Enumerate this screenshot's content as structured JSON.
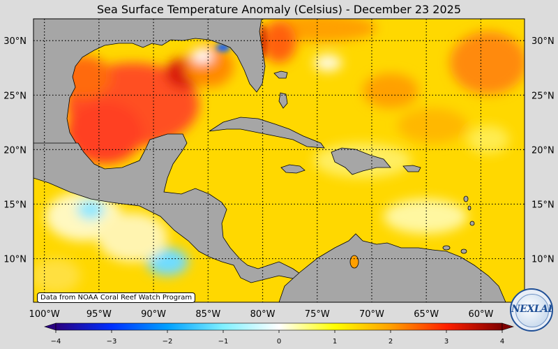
{
  "title": "Sea Surface Temperature Anomaly (Celsius) - December 23 2025",
  "credit": "Data from NOAA Coral Reef Watch Program",
  "logo_text": "NEXLAB",
  "map": {
    "lon_range": [
      -101,
      -56
    ],
    "lat_range": [
      6,
      32
    ],
    "lat_ticks": [
      {
        "value": 30,
        "label": "30°N"
      },
      {
        "value": 25,
        "label": "25°N"
      },
      {
        "value": 20,
        "label": "20°N"
      },
      {
        "value": 15,
        "label": "15°N"
      },
      {
        "value": 10,
        "label": "10°N"
      }
    ],
    "lon_ticks": [
      {
        "value": -100,
        "label": "100°W"
      },
      {
        "value": -95,
        "label": "95°W"
      },
      {
        "value": -90,
        "label": "90°W"
      },
      {
        "value": -85,
        "label": "85°W"
      },
      {
        "value": -80,
        "label": "80°W"
      },
      {
        "value": -75,
        "label": "75°W"
      },
      {
        "value": -70,
        "label": "70°W"
      },
      {
        "value": -65,
        "label": "65°W"
      },
      {
        "value": -60,
        "label": "60°W"
      }
    ],
    "land_color": "#a6a6a6",
    "ocean_base_color": "#ffd700"
  },
  "colorbar": {
    "range": [
      -4,
      4
    ],
    "ticks": [
      {
        "value": -4,
        "label": "−4"
      },
      {
        "value": -3,
        "label": "−3"
      },
      {
        "value": -2,
        "label": "−2"
      },
      {
        "value": -1,
        "label": "−1"
      },
      {
        "value": 0,
        "label": "0"
      },
      {
        "value": 1,
        "label": "1"
      },
      {
        "value": 2,
        "label": "2"
      },
      {
        "value": 3,
        "label": "3"
      },
      {
        "value": 4,
        "label": "4"
      }
    ],
    "colors": [
      "#2a0080",
      "#0030ff",
      "#00a0ff",
      "#80f0ff",
      "#ffffff",
      "#ffff00",
      "#ffa000",
      "#ff2000",
      "#800000"
    ]
  }
}
